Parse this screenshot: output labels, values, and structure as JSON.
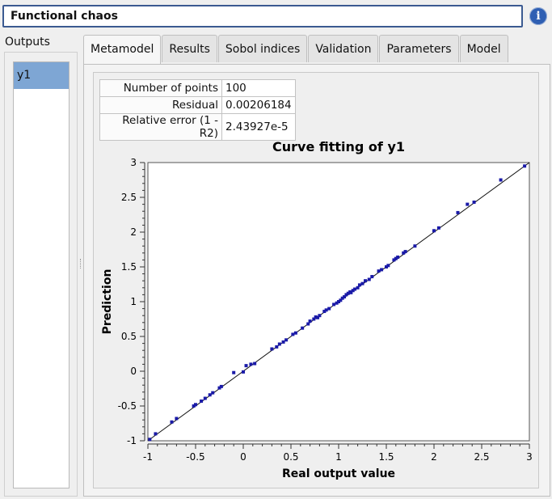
{
  "title": "Functional chaos",
  "info_button": "i",
  "outputs": {
    "label": "Outputs",
    "items": [
      "y1"
    ]
  },
  "tabs": [
    "Metamodel",
    "Results",
    "Sobol indices",
    "Validation",
    "Parameters",
    "Model"
  ],
  "active_tab": "Metamodel",
  "metrics": [
    {
      "label": "Number of points",
      "value": "100"
    },
    {
      "label": "Residual",
      "value": "0.00206184"
    },
    {
      "label": "Relative error (1 - R2)",
      "value": "2.43927e-5"
    }
  ],
  "icons": {
    "info": "info-icon"
  },
  "chart_data": {
    "type": "scatter",
    "title": "Curve fitting of y1",
    "xlabel": "Real output value",
    "ylabel": "Prediction",
    "xlim": [
      -1,
      3
    ],
    "ylim": [
      -1,
      3
    ],
    "xticks": [
      "-1",
      "-0.5",
      "0",
      "0.5",
      "1",
      "1.5",
      "2",
      "2.5",
      "3"
    ],
    "yticks": [
      "-1",
      "-0.5",
      "0",
      "0.5",
      "1",
      "1.5",
      "2",
      "2.5",
      "3"
    ],
    "line": [
      [
        -1,
        -1
      ],
      [
        3,
        3
      ]
    ],
    "point_color": "#1a1aa8",
    "points": [
      [
        -0.98,
        -0.98
      ],
      [
        -0.92,
        -0.9
      ],
      [
        -0.75,
        -0.73
      ],
      [
        -0.7,
        -0.68
      ],
      [
        -0.52,
        -0.5
      ],
      [
        -0.5,
        -0.48
      ],
      [
        -0.44,
        -0.43
      ],
      [
        -0.4,
        -0.39
      ],
      [
        -0.35,
        -0.34
      ],
      [
        -0.32,
        -0.31
      ],
      [
        -0.25,
        -0.24
      ],
      [
        -0.23,
        -0.22
      ],
      [
        -0.1,
        -0.02
      ],
      [
        0.0,
        -0.01
      ],
      [
        0.03,
        0.08
      ],
      [
        0.08,
        0.1
      ],
      [
        0.12,
        0.11
      ],
      [
        0.3,
        0.32
      ],
      [
        0.35,
        0.35
      ],
      [
        0.38,
        0.39
      ],
      [
        0.42,
        0.42
      ],
      [
        0.45,
        0.45
      ],
      [
        0.52,
        0.53
      ],
      [
        0.55,
        0.55
      ],
      [
        0.62,
        0.62
      ],
      [
        0.68,
        0.68
      ],
      [
        0.7,
        0.72
      ],
      [
        0.74,
        0.75
      ],
      [
        0.76,
        0.78
      ],
      [
        0.78,
        0.77
      ],
      [
        0.8,
        0.8
      ],
      [
        0.85,
        0.86
      ],
      [
        0.87,
        0.88
      ],
      [
        0.9,
        0.9
      ],
      [
        0.95,
        0.96
      ],
      [
        0.98,
        0.98
      ],
      [
        1.0,
        1.0
      ],
      [
        1.02,
        1.02
      ],
      [
        1.04,
        1.05
      ],
      [
        1.06,
        1.07
      ],
      [
        1.08,
        1.1
      ],
      [
        1.1,
        1.12
      ],
      [
        1.12,
        1.14
      ],
      [
        1.13,
        1.13
      ],
      [
        1.15,
        1.16
      ],
      [
        1.17,
        1.18
      ],
      [
        1.2,
        1.2
      ],
      [
        1.22,
        1.24
      ],
      [
        1.25,
        1.26
      ],
      [
        1.28,
        1.3
      ],
      [
        1.32,
        1.32
      ],
      [
        1.35,
        1.36
      ],
      [
        1.42,
        1.44
      ],
      [
        1.45,
        1.46
      ],
      [
        1.5,
        1.5
      ],
      [
        1.52,
        1.52
      ],
      [
        1.58,
        1.6
      ],
      [
        1.6,
        1.62
      ],
      [
        1.62,
        1.64
      ],
      [
        1.68,
        1.7
      ],
      [
        1.7,
        1.72
      ],
      [
        1.8,
        1.8
      ],
      [
        2.0,
        2.02
      ],
      [
        2.05,
        2.06
      ],
      [
        2.25,
        2.28
      ],
      [
        2.35,
        2.4
      ],
      [
        2.42,
        2.43
      ],
      [
        2.7,
        2.75
      ],
      [
        2.95,
        2.95
      ]
    ]
  }
}
